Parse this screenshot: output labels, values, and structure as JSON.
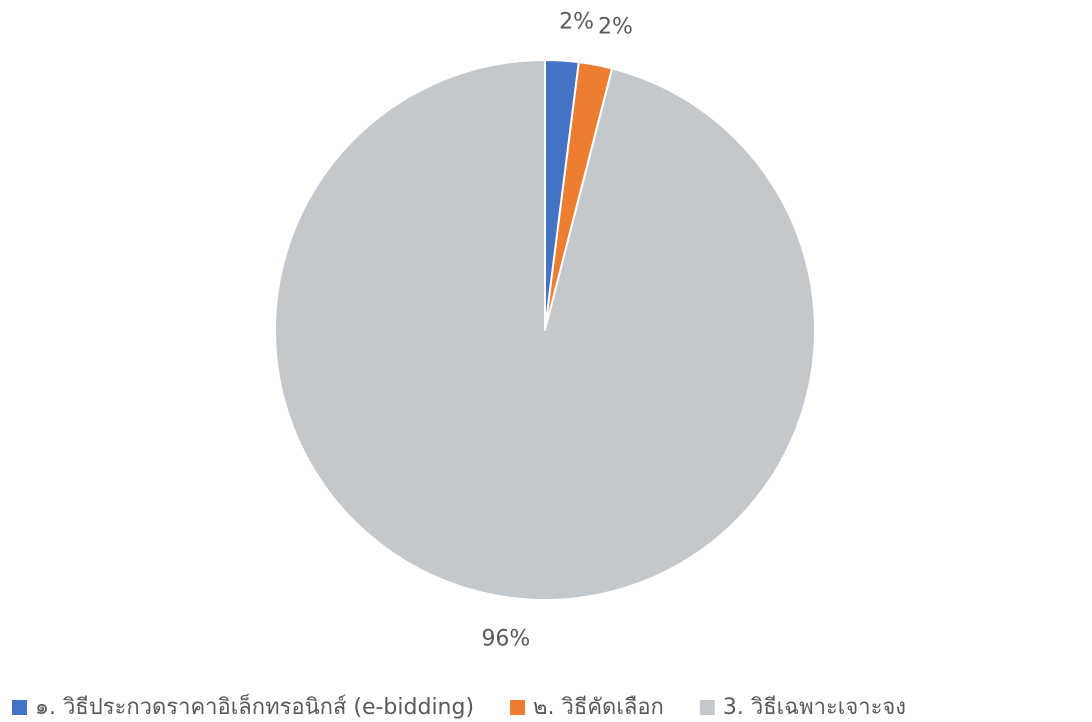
{
  "chart_data": {
    "type": "pie",
    "categories": [
      "๑. วิธีประกวดราคาอิเล็กทรอนิกส์ (e-bidding)",
      "๒. วิธีคัดเลือก",
      "3. วิธีเฉพาะเจาะจง"
    ],
    "values": [
      2,
      2,
      96
    ],
    "value_labels": [
      "2%",
      "2%",
      "96%"
    ],
    "colors": [
      "#4472c4",
      "#ed7d31",
      "#c3c8cd"
    ],
    "legend": "bottom"
  }
}
